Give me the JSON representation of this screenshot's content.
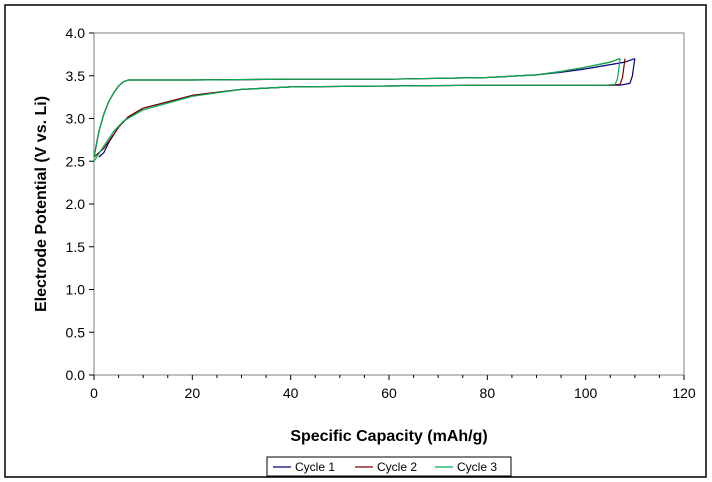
{
  "chart_data": {
    "type": "line",
    "title": "",
    "xlabel": "Specific Capacity (mAh/g)",
    "ylabel": "Electrode Potential (V vs. Li)",
    "xlim": [
      0,
      120
    ],
    "ylim": [
      0.0,
      4.0
    ],
    "xticks": [
      0,
      20,
      40,
      60,
      80,
      100,
      120
    ],
    "yticks": [
      0.0,
      0.5,
      1.0,
      1.5,
      2.0,
      2.5,
      3.0,
      3.5,
      4.0
    ],
    "xtick_labels": [
      "0",
      "20",
      "40",
      "60",
      "80",
      "100",
      "120"
    ],
    "ytick_labels": [
      "0.0",
      "0.5",
      "1.0",
      "1.5",
      "2.0",
      "2.5",
      "3.0",
      "3.5",
      "4.0"
    ],
    "grid": false,
    "legend_position": "bottom",
    "series": [
      {
        "name": "Cycle 1",
        "color": "#000080",
        "charge": {
          "x": [
            0,
            1,
            2,
            3,
            4,
            5,
            6,
            7,
            10,
            20,
            40,
            60,
            80,
            90,
            95,
            100,
            105,
            108,
            110
          ],
          "y": [
            2.55,
            2.85,
            3.05,
            3.2,
            3.3,
            3.38,
            3.43,
            3.45,
            3.45,
            3.45,
            3.46,
            3.46,
            3.48,
            3.51,
            3.54,
            3.58,
            3.63,
            3.66,
            3.7
          ]
        },
        "discharge": {
          "x": [
            110,
            109.5,
            109,
            107,
            100,
            80,
            60,
            40,
            30,
            20,
            10,
            7,
            5,
            3,
            2,
            1
          ],
          "y": [
            3.7,
            3.5,
            3.41,
            3.39,
            3.39,
            3.39,
            3.38,
            3.37,
            3.34,
            3.27,
            3.12,
            3.02,
            2.9,
            2.72,
            2.6,
            2.55
          ]
        }
      },
      {
        "name": "Cycle 2",
        "color": "#800000",
        "charge": {
          "x": [
            0,
            1,
            2,
            3,
            4,
            5,
            6,
            7,
            10,
            20,
            40,
            60,
            80,
            90,
            95,
            100,
            105,
            107
          ],
          "y": [
            2.55,
            2.85,
            3.05,
            3.2,
            3.3,
            3.38,
            3.43,
            3.45,
            3.45,
            3.45,
            3.46,
            3.46,
            3.48,
            3.51,
            3.55,
            3.6,
            3.66,
            3.7
          ]
        },
        "discharge": {
          "x": [
            108,
            107.5,
            107,
            105,
            100,
            80,
            60,
            40,
            30,
            20,
            10,
            7,
            5,
            2,
            0
          ],
          "y": [
            3.7,
            3.48,
            3.4,
            3.39,
            3.39,
            3.39,
            3.38,
            3.37,
            3.34,
            3.27,
            3.12,
            3.02,
            2.9,
            2.65,
            2.55
          ]
        }
      },
      {
        "name": "Cycle 3",
        "color": "#00b050",
        "charge": {
          "x": [
            0,
            1,
            2,
            3,
            4,
            5,
            6,
            7,
            10,
            20,
            40,
            60,
            80,
            90,
            95,
            100,
            105,
            107
          ],
          "y": [
            2.55,
            2.85,
            3.05,
            3.2,
            3.3,
            3.38,
            3.43,
            3.45,
            3.45,
            3.45,
            3.46,
            3.46,
            3.48,
            3.51,
            3.55,
            3.6,
            3.66,
            3.7
          ]
        },
        "discharge": {
          "x": [
            107,
            106.5,
            106,
            104,
            100,
            80,
            60,
            40,
            30,
            20,
            10,
            6,
            4,
            2,
            0
          ],
          "y": [
            3.7,
            3.47,
            3.4,
            3.39,
            3.39,
            3.39,
            3.38,
            3.37,
            3.34,
            3.26,
            3.1,
            2.97,
            2.85,
            2.68,
            2.5
          ]
        }
      }
    ]
  }
}
